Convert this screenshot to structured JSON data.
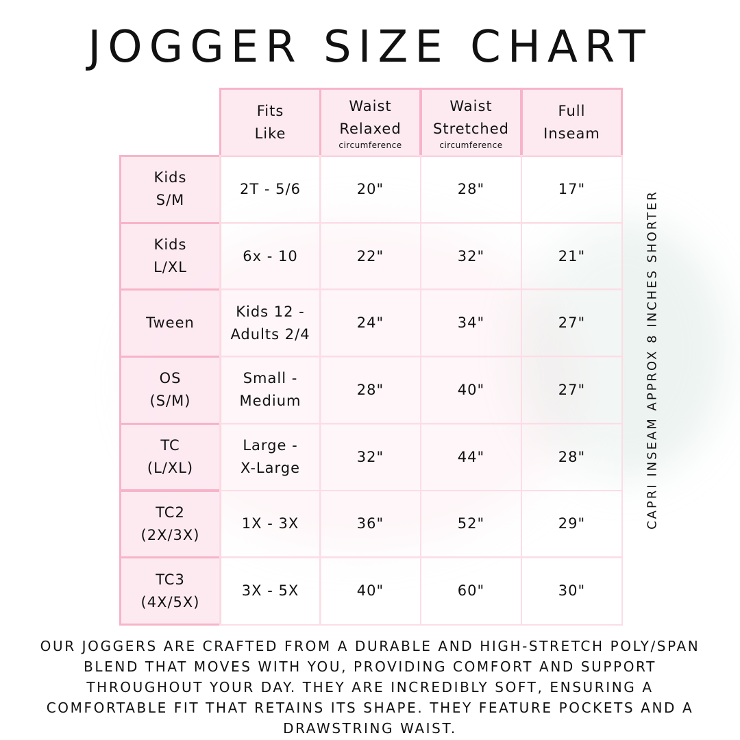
{
  "title": "JOGGER SIZE CHART",
  "colors": {
    "border": "#f7b4c8",
    "header_fill": "#fde8ef",
    "body_border": "#fbdde6",
    "text": "#111111"
  },
  "table": {
    "headers": [
      {
        "lines": [
          "Fits",
          "Like"
        ],
        "sub": ""
      },
      {
        "lines": [
          "Waist",
          "Relaxed"
        ],
        "sub": "circumference"
      },
      {
        "lines": [
          "Waist",
          "Stretched"
        ],
        "sub": "circumference"
      },
      {
        "lines": [
          "Full",
          "Inseam"
        ],
        "sub": ""
      }
    ],
    "rows": [
      {
        "size": [
          "Kids",
          "S/M"
        ],
        "fits_like": [
          "2T - 5/6"
        ],
        "waist_relaxed": "20\"",
        "waist_stretched": "28\"",
        "inseam": "17\""
      },
      {
        "size": [
          "Kids",
          "L/XL"
        ],
        "fits_like": [
          "6x - 10"
        ],
        "waist_relaxed": "22\"",
        "waist_stretched": "32\"",
        "inseam": "21\""
      },
      {
        "size": [
          "Tween"
        ],
        "fits_like": [
          "Kids 12 -",
          "Adults 2/4"
        ],
        "waist_relaxed": "24\"",
        "waist_stretched": "34\"",
        "inseam": "27\""
      },
      {
        "size": [
          "OS",
          "(S/M)"
        ],
        "fits_like": [
          "Small -",
          "Medium"
        ],
        "waist_relaxed": "28\"",
        "waist_stretched": "40\"",
        "inseam": "27\""
      },
      {
        "size": [
          "TC",
          "(L/XL)"
        ],
        "fits_like": [
          "Large -",
          "X-Large"
        ],
        "waist_relaxed": "32\"",
        "waist_stretched": "44\"",
        "inseam": "28\""
      },
      {
        "size": [
          "TC2",
          "(2X/3X)"
        ],
        "fits_like": [
          "1X - 3X"
        ],
        "waist_relaxed": "36\"",
        "waist_stretched": "52\"",
        "inseam": "29\""
      },
      {
        "size": [
          "TC3",
          "(4X/5X)"
        ],
        "fits_like": [
          "3X - 5X"
        ],
        "waist_relaxed": "40\"",
        "waist_stretched": "60\"",
        "inseam": "30\""
      }
    ]
  },
  "side_note": "CAPRI INSEAM APPROX 8 INCHES SHORTER",
  "footer": "Our joggers are crafted from a durable and high-stretch poly/span blend that moves with you, providing comfort and support throughout your day. They are incredibly soft, ensuring a comfortable fit that retains its shape. They feature pockets and a drawstring waist."
}
